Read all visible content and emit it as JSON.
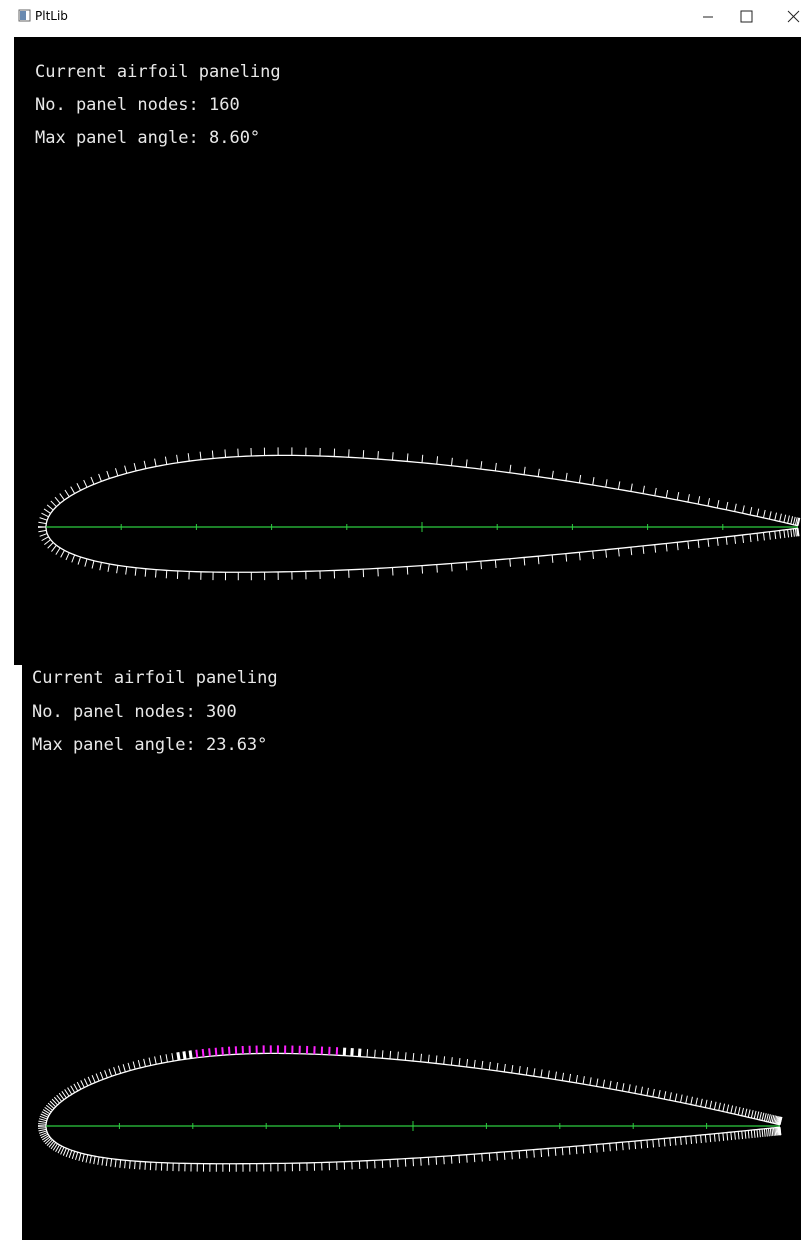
{
  "window": {
    "title": "PltLib"
  },
  "panels": [
    {
      "heading": "Current airfoil paneling",
      "nodes_text": "No. panel nodes: 160",
      "angle_text": "Max panel angle: 8.60°"
    },
    {
      "heading": "Current airfoil paneling",
      "nodes_text": "No. panel nodes: 300",
      "angle_text": "Max panel angle: 23.63°"
    }
  ]
}
